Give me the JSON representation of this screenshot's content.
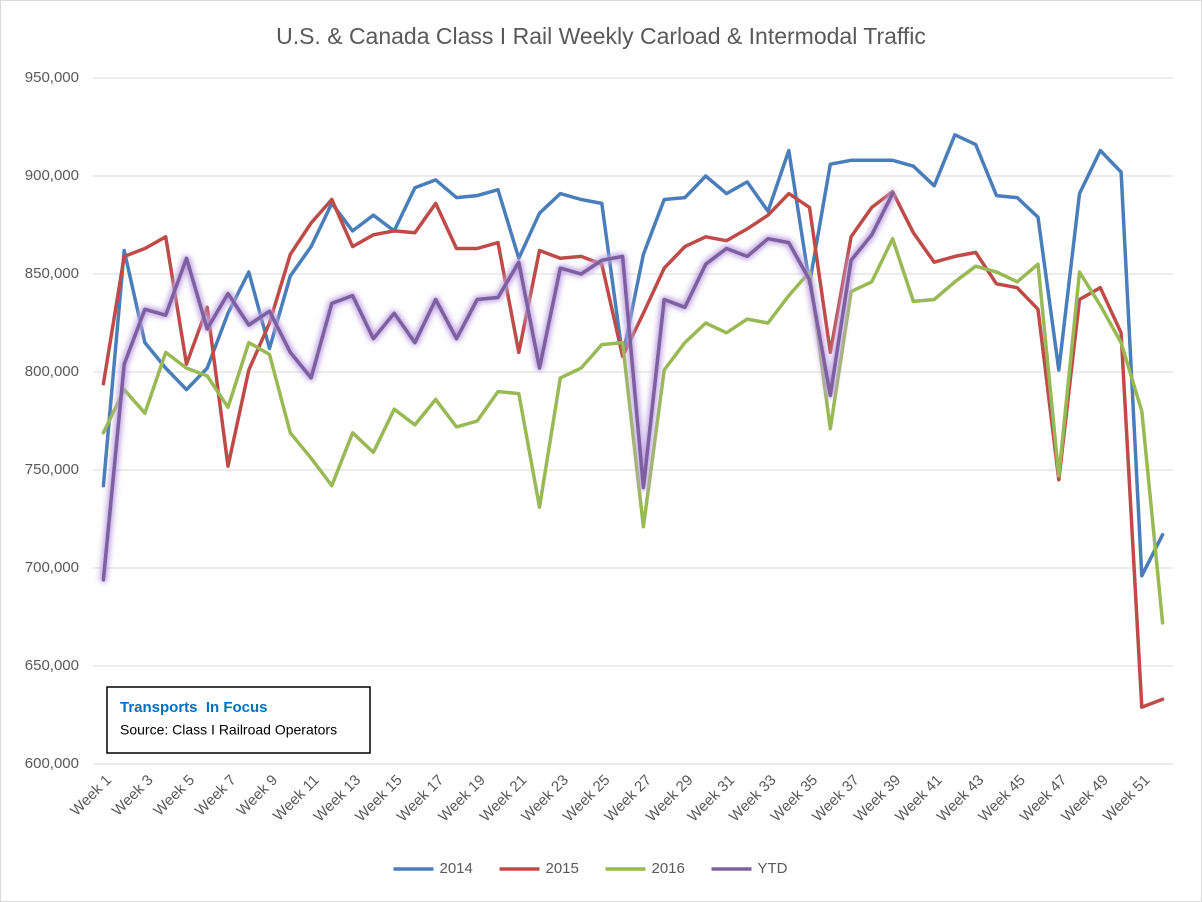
{
  "chart_data": {
    "type": "line",
    "title": "U.S. & Canada Class I Rail Weekly Carload & Intermodal Traffic",
    "annotation": {
      "title": "Transports  In Focus",
      "text": "Source: Class I Railroad Operators"
    },
    "categories": [
      "Week 1",
      null,
      "Week 3",
      null,
      "Week 5",
      null,
      "Week 7",
      null,
      "Week 9",
      null,
      "Week 11",
      null,
      "Week 13",
      null,
      "Week 15",
      null,
      "Week 17",
      null,
      "Week 19",
      null,
      "Week 21",
      null,
      "Week 23",
      null,
      "Week 25",
      null,
      "Week 27",
      null,
      "Week 29",
      null,
      "Week 31",
      null,
      "Week 33",
      null,
      "Week 35",
      null,
      "Week 37",
      null,
      "Week 39",
      null,
      "Week 41",
      null,
      "Week 43",
      null,
      "Week 45",
      null,
      "Week 47",
      null,
      "Week 49",
      null,
      "Week 51",
      null
    ],
    "series": [
      {
        "name": "2014",
        "color": "#4a7ebb",
        "values": [
          742000,
          862000,
          815000,
          802000,
          791000,
          802000,
          830000,
          851000,
          812000,
          849000,
          864000,
          886000,
          872000,
          880000,
          872000,
          894000,
          898000,
          889000,
          890000,
          893000,
          858000,
          881000,
          891000,
          888000,
          886000,
          808000,
          860000,
          888000,
          889000,
          900000,
          891000,
          897000,
          882000,
          913000,
          845000,
          906000,
          908000,
          908000,
          908000,
          905000,
          895000,
          921000,
          916000,
          890000,
          889000,
          879000,
          801000,
          891000,
          913000,
          902000,
          696000,
          717000
        ]
      },
      {
        "name": "2015",
        "color": "#be4b48",
        "values": [
          794000,
          859000,
          863000,
          869000,
          804000,
          833000,
          752000,
          801000,
          825000,
          860000,
          876000,
          888000,
          864000,
          870000,
          872000,
          871000,
          886000,
          863000,
          863000,
          866000,
          810000,
          862000,
          858000,
          859000,
          855000,
          808000,
          830000,
          853000,
          864000,
          869000,
          867000,
          873000,
          880000,
          891000,
          884000,
          810000,
          869000,
          884000,
          892000,
          871000,
          856000,
          859000,
          861000,
          845000,
          843000,
          832000,
          745000,
          837000,
          843000,
          820000,
          629000,
          633000
        ]
      },
      {
        "name": "2016",
        "color": "#98b954",
        "values": [
          769000,
          791000,
          779000,
          810000,
          802000,
          798000,
          782000,
          815000,
          809000,
          769000,
          756000,
          742000,
          769000,
          759000,
          781000,
          773000,
          786000,
          772000,
          775000,
          790000,
          789000,
          731000,
          797000,
          802000,
          814000,
          815000,
          721000,
          801000,
          815000,
          825000,
          820000,
          827000,
          825000,
          839000,
          851000,
          771000,
          841000,
          846000,
          868000,
          836000,
          837000,
          846000,
          854000,
          851000,
          846000,
          855000,
          747000,
          851000,
          834000,
          815000,
          780000,
          672000
        ]
      },
      {
        "name": "YTD",
        "color": "#7d60a0",
        "glow": true,
        "values": [
          694000,
          804000,
          832000,
          829000,
          858000,
          822000,
          840000,
          824000,
          831000,
          810000,
          797000,
          835000,
          839000,
          817000,
          830000,
          815000,
          837000,
          817000,
          837000,
          838000,
          856000,
          802000,
          853000,
          850000,
          857000,
          859000,
          741000,
          837000,
          833000,
          855000,
          863000,
          859000,
          868000,
          866000,
          847000,
          788000,
          857000,
          870000,
          891000,
          null,
          null,
          null,
          null,
          null,
          null,
          null,
          null,
          null,
          null,
          null,
          null,
          null
        ]
      }
    ],
    "ylim": [
      600000,
      950000
    ],
    "yticks": [
      {
        "value": 600000,
        "label": "600,000"
      },
      {
        "value": 650000,
        "label": "650,000"
      },
      {
        "value": 700000,
        "label": "700,000"
      },
      {
        "value": 750000,
        "label": "750,000"
      },
      {
        "value": 800000,
        "label": "800,000"
      },
      {
        "value": 850000,
        "label": "850,000"
      },
      {
        "value": 900000,
        "label": "900,000"
      },
      {
        "value": 950000,
        "label": "950,000"
      }
    ],
    "grid": true,
    "legend": "bottom"
  }
}
